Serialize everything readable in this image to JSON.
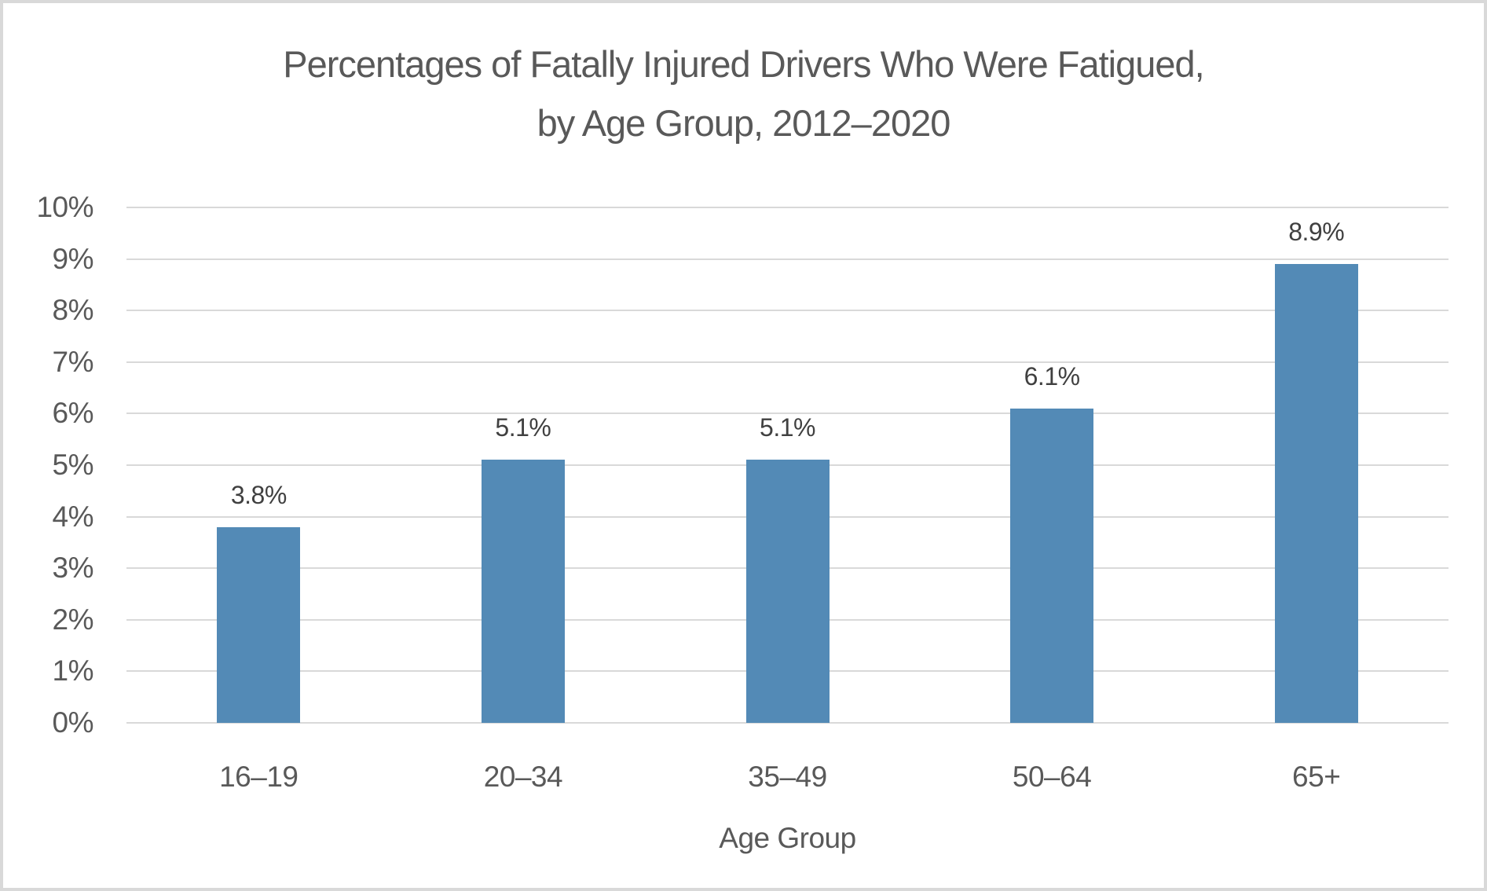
{
  "frame": {
    "background": "#ffffff",
    "border_color": "#d9d9d9"
  },
  "chart_data": {
    "type": "bar",
    "title": "Percentages of Fatally Injured Drivers Who Were Fatigued, by Age Group, 2012–2020",
    "categories": [
      "16–19",
      "20–34",
      "35–49",
      "50–64",
      "65+"
    ],
    "values": [
      3.8,
      5.1,
      5.1,
      6.1,
      8.9
    ],
    "data_labels": [
      "3.8%",
      "5.1%",
      "5.1%",
      "6.1%",
      "8.9%"
    ],
    "xlabel": "Age Group",
    "ylabel": "",
    "ylim": [
      0,
      10
    ],
    "ytick_step": 1,
    "ytick_labels": [
      "0%",
      "1%",
      "2%",
      "3%",
      "4%",
      "5%",
      "6%",
      "7%",
      "8%",
      "9%",
      "10%"
    ],
    "grid": "horizontal",
    "legend": "none",
    "colors": {
      "bar": "#538ab6",
      "gridline": "#d9d9d9",
      "title_text": "#595959",
      "tick_text": "#595959",
      "data_label_text": "#404040"
    }
  }
}
